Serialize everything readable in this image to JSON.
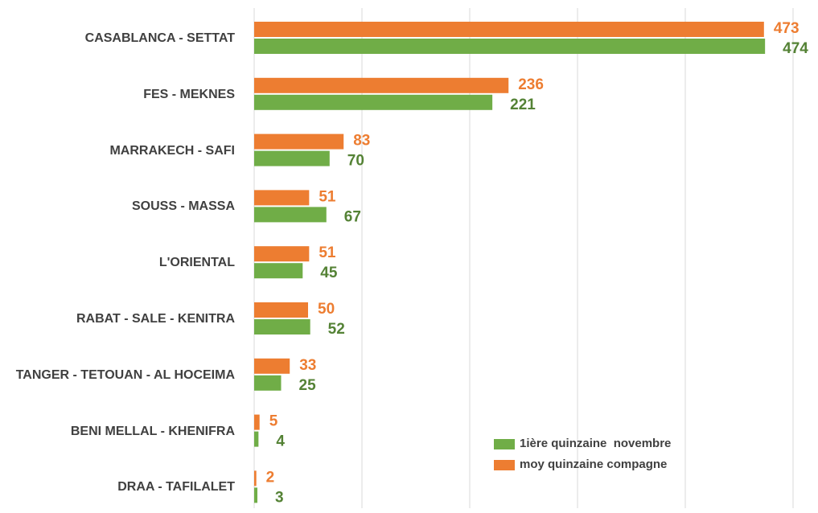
{
  "chart_data": {
    "type": "bar",
    "orientation": "horizontal",
    "categories": [
      "CASABLANCA - SETTAT",
      "FES - MEKNES",
      "MARRAKECH - SAFI",
      "SOUSS - MASSA",
      "L'ORIENTAL",
      "RABAT - SALE - KENITRA",
      "TANGER - TETOUAN - AL HOCEIMA",
      "BENI MELLAL - KHENIFRA",
      "DRAA - TAFILALET"
    ],
    "series": [
      {
        "name": "moy quinzaine compagne",
        "color": "#ED7D31",
        "label_color": "#ED7D31",
        "values": [
          473,
          236,
          83,
          51,
          51,
          50,
          33,
          5,
          2
        ]
      },
      {
        "name": "1ière quinzaine  novembre",
        "color": "#70AD47",
        "label_color": "#548235",
        "values": [
          474,
          221,
          70,
          67,
          45,
          52,
          25,
          4,
          3
        ]
      }
    ],
    "xlim": [
      0,
      500
    ],
    "xticks": [
      0,
      100,
      200,
      300,
      400,
      500
    ],
    "grid": true,
    "legend_order": [
      1,
      0
    ]
  }
}
